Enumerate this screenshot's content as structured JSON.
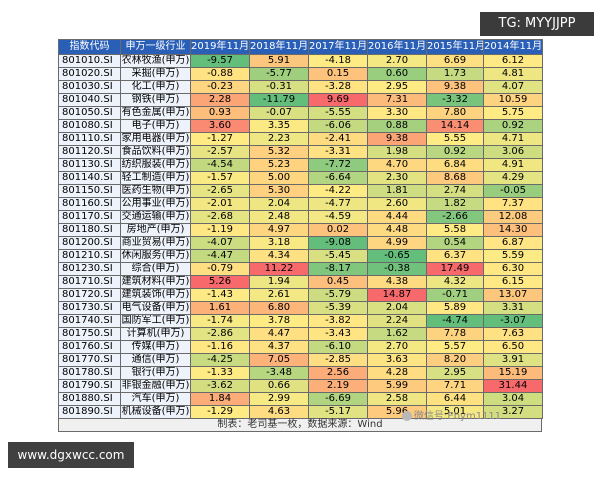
{
  "badge_top": "TG: MYYJJPP",
  "badge_bottom": "www.dgxwcc.com",
  "watermark": "微信号:Ebym1111",
  "table": {
    "headers": [
      "指数代码",
      "申万一级行业",
      "2019年11月",
      "2018年11月",
      "2017年11月",
      "2016年11月",
      "2015年11月",
      "2014年11月"
    ],
    "rows": [
      [
        "801010.SI",
        "农林牧渔(申万)",
        "-9.57",
        "5.91",
        "-4.18",
        "2.70",
        "6.69",
        "6.12"
      ],
      [
        "801020.SI",
        "采掘(申万)",
        "-0.88",
        "-5.77",
        "0.15",
        "0.60",
        "1.73",
        "4.81"
      ],
      [
        "801030.SI",
        "化工(申万)",
        "-0.23",
        "-0.31",
        "-3.28",
        "2.95",
        "9.38",
        "4.07"
      ],
      [
        "801040.SI",
        "钢铁(申万)",
        "2.28",
        "-11.79",
        "9.69",
        "7.31",
        "-3.32",
        "10.59"
      ],
      [
        "801050.SI",
        "有色金属(申万)",
        "0.93",
        "-0.07",
        "-5.55",
        "3.30",
        "7.80",
        "5.75"
      ],
      [
        "801080.SI",
        "电子(申万)",
        "3.60",
        "3.35",
        "-6.06",
        "0.88",
        "14.14",
        "0.92"
      ],
      [
        "801110.SI",
        "家用电器(申万)",
        "-1.27",
        "2.23",
        "-2.41",
        "9.38",
        "5.55",
        "4.71"
      ],
      [
        "801120.SI",
        "食品饮料(申万)",
        "-2.57",
        "5.32",
        "-3.31",
        "1.98",
        "0.92",
        "3.06"
      ],
      [
        "801130.SI",
        "纺织服装(申万)",
        "-4.54",
        "5.23",
        "-7.72",
        "4.70",
        "6.84",
        "4.91"
      ],
      [
        "801140.SI",
        "轻工制造(申万)",
        "-1.57",
        "5.00",
        "-6.64",
        "2.30",
        "8.68",
        "4.29"
      ],
      [
        "801150.SI",
        "医药生物(申万)",
        "-2.65",
        "5.30",
        "-4.22",
        "1.81",
        "2.74",
        "-0.05"
      ],
      [
        "801160.SI",
        "公用事业(申万)",
        "-2.01",
        "2.04",
        "-4.77",
        "2.60",
        "1.82",
        "7.37"
      ],
      [
        "801170.SI",
        "交通运输(申万)",
        "-2.68",
        "2.48",
        "-4.59",
        "4.44",
        "-2.66",
        "12.08"
      ],
      [
        "801180.SI",
        "房地产(申万)",
        "-1.19",
        "4.97",
        "0.02",
        "4.48",
        "5.58",
        "14.30"
      ],
      [
        "801200.SI",
        "商业贸易(申万)",
        "-4.07",
        "3.18",
        "-9.08",
        "4.99",
        "0.54",
        "6.87"
      ],
      [
        "801210.SI",
        "休闲服务(申万)",
        "-4.47",
        "4.34",
        "-5.45",
        "-0.65",
        "6.37",
        "5.59"
      ],
      [
        "801230.SI",
        "综合(申万)",
        "-0.79",
        "11.22",
        "-8.17",
        "-0.38",
        "17.49",
        "6.30"
      ],
      [
        "801710.SI",
        "建筑材料(申万)",
        "5.26",
        "1.94",
        "0.45",
        "4.38",
        "4.32",
        "6.15"
      ],
      [
        "801720.SI",
        "建筑装饰(申万)",
        "-1.43",
        "2.61",
        "-5.79",
        "14.87",
        "-0.71",
        "13.07"
      ],
      [
        "801730.SI",
        "电气设备(申万)",
        "1.61",
        "6.80",
        "-5.39",
        "2.04",
        "5.89",
        "3.31"
      ],
      [
        "801740.SI",
        "国防军工(申万)",
        "-1.74",
        "3.78",
        "-3.82",
        "2.24",
        "-4.74",
        "-3.07"
      ],
      [
        "801750.SI",
        "计算机(申万)",
        "-2.86",
        "4.47",
        "-3.43",
        "1.62",
        "7.78",
        "7.63"
      ],
      [
        "801760.SI",
        "传媒(申万)",
        "-1.16",
        "4.37",
        "-6.10",
        "2.70",
        "5.57",
        "6.50"
      ],
      [
        "801770.SI",
        "通信(申万)",
        "-4.25",
        "7.05",
        "-2.85",
        "3.63",
        "8.20",
        "3.91"
      ],
      [
        "801780.SI",
        "银行(申万)",
        "-1.33",
        "-3.48",
        "2.56",
        "4.28",
        "2.95",
        "15.19"
      ],
      [
        "801790.SI",
        "非银金融(申万)",
        "-3.62",
        "0.66",
        "2.19",
        "5.99",
        "7.71",
        "31.44"
      ],
      [
        "801880.SI",
        "汽车(申万)",
        "1.84",
        "2.99",
        "-6.69",
        "2.58",
        "6.44",
        "3.04"
      ],
      [
        "801890.SI",
        "机械设备(申万)",
        "-1.29",
        "4.63",
        "-5.17",
        "5.96",
        "5.01",
        "3.27"
      ]
    ],
    "footer": "制表：老司基一枚，数据来源：Wind"
  }
}
